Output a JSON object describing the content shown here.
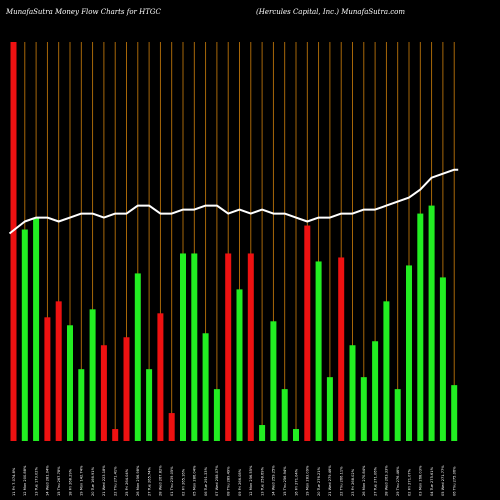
{
  "header": {
    "left_title": "MunafaSutra  Money Flow  Charts for HTGC",
    "right_title": "(Hercules Capital,  Inc.) MunafaSutra.com"
  },
  "colors": {
    "background": "#000000",
    "grid": "#b8720a",
    "up": "#22ee22",
    "down": "#ee1111",
    "price_line": "#ffffff",
    "text": "#ffffff"
  },
  "chart_data": {
    "type": "bar",
    "series": [
      {
        "values": [
          100,
          53,
          56,
          31,
          35,
          29,
          18,
          33,
          24,
          3,
          26,
          42,
          18,
          32,
          7,
          47,
          47,
          27,
          13,
          47,
          38,
          47,
          4,
          30,
          13,
          3,
          54,
          45,
          16,
          46,
          24,
          16,
          25,
          35,
          13,
          44,
          57,
          59,
          41,
          14
        ],
        "directions": [
          "down",
          "up",
          "up",
          "down",
          "down",
          "up",
          "up",
          "up",
          "down",
          "down",
          "down",
          "up",
          "up",
          "down",
          "down",
          "up",
          "up",
          "up",
          "up",
          "down",
          "up",
          "down",
          "up",
          "up",
          "up",
          "up",
          "down",
          "up",
          "up",
          "down",
          "up",
          "up",
          "up",
          "up",
          "up",
          "up",
          "up",
          "up",
          "up",
          "up"
        ]
      },
      {
        "values": [
          52,
          55,
          56,
          56,
          55,
          56,
          57,
          57,
          56,
          57,
          57,
          59,
          59,
          57,
          57,
          58,
          58,
          59,
          59,
          57,
          58,
          57,
          58,
          57,
          57,
          56,
          55,
          56,
          56,
          57,
          57,
          58,
          58,
          59,
          60,
          61,
          63,
          66,
          67,
          68
        ]
      }
    ],
    "x_tick_labels": [
      "11 Fri 7.074.8%",
      "12 Mon 200.88%",
      "13 Tue 173.02%",
      "14 Wed 281.04%",
      "15 Thu 267.78%",
      "18 Fri 268.29%",
      "19 Mon 142.74%",
      "20 Tue 166.91%",
      "21 Wed 223.18%",
      "22 Thu 271.41%",
      "25 Fri 264.04%",
      "26 Mon 256.98%",
      "27 Tue 265.74%",
      "28 Wed 267.82%",
      "01 Thu 239.05%",
      "02 Fri 265.16%",
      "05 Mon 286.04%",
      "06 Tue 291.33%",
      "07 Wed 258.07%",
      "08 Thu 289.49%",
      "09 Fri 266.08%",
      "12 Mon 256.55%",
      "13 Tue 258.69%",
      "14 Wed 259.25%",
      "15 Thu 256.94%",
      "16 Fri 271.04%",
      "19 Mon 283.09%",
      "20 Tue 276.21%",
      "21 Wed 279.46%",
      "22 Thu 266.11%",
      "23 Fri 268.02%",
      "26 Mon 270.84%",
      "27 Tue 271.06%",
      "28 Wed 263.33%",
      "29 Thu 276.46%",
      "02 Fri 271.07%",
      "03 Mon 268.03%",
      "04 Tue 275.61%",
      "05 Wed 271.77%",
      "06 Thu 275.06%"
    ],
    "grid": true
  }
}
